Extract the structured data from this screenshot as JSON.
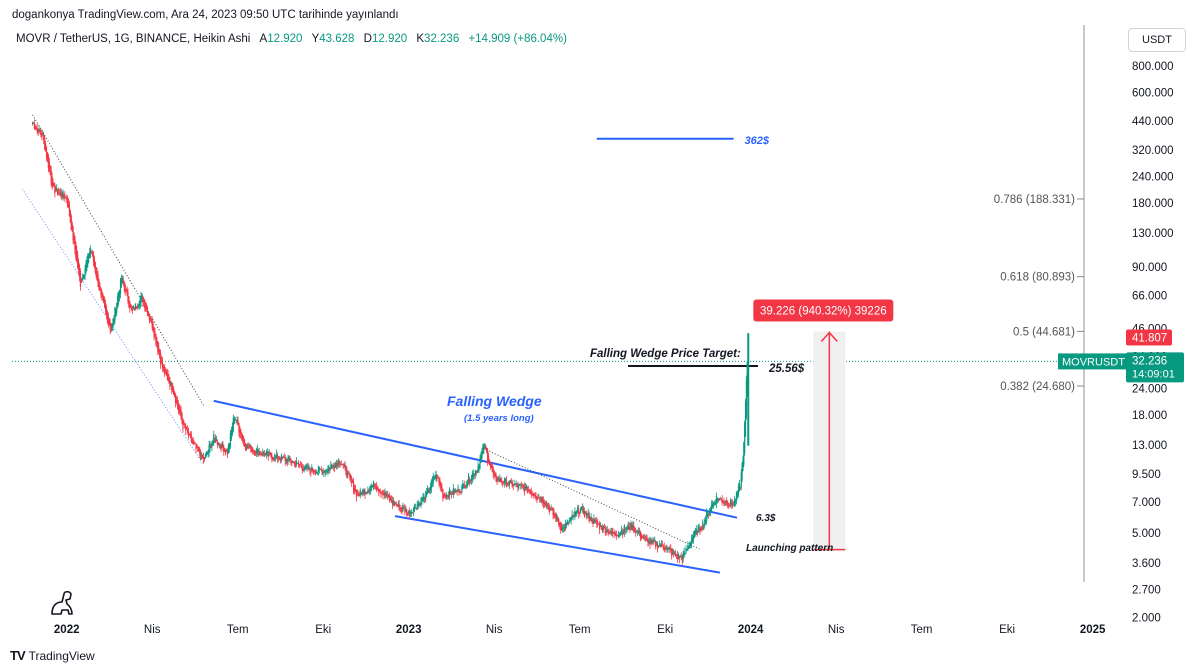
{
  "header": {
    "publish_line": "dogankonya TradingView.com, Ara 24, 2023 09:50 UTC tarihinde yayınlandı",
    "symbol": "MOVR / TetherUS, 1G, BINANCE, Heikin Ashi",
    "ohlc": [
      {
        "label": "A",
        "value": "12.920"
      },
      {
        "label": "Y",
        "value": "43.628"
      },
      {
        "label": "D",
        "value": "12.920"
      },
      {
        "label": "K",
        "value": "32.236"
      }
    ],
    "change": "+14.909 (+86.04%)"
  },
  "currency_button": "USDT",
  "brand": {
    "logo": "TV",
    "name": "TradingView"
  },
  "colors": {
    "up": "#089981",
    "down": "#f23645",
    "drawing": "#2962ff",
    "label_bg": "#f23645"
  },
  "chart_data": {
    "type": "candlestick",
    "scale": "log",
    "title": "MOVR / TetherUS, 1G, BINANCE, Heikin Ashi",
    "x_ticks": [
      "2022",
      "Nis",
      "Tem",
      "Eki",
      "2023",
      "Nis",
      "Tem",
      "Eki",
      "2024",
      "Nis",
      "Tem",
      "Eki",
      "2025"
    ],
    "x_tick_dates": [
      2022.0,
      2022.25,
      2022.5,
      2022.75,
      2023.0,
      2023.25,
      2023.5,
      2023.75,
      2024.0,
      2024.25,
      2024.5,
      2024.75,
      2025.0
    ],
    "x_range": [
      2021.84,
      2025.08
    ],
    "y_ticks": [
      "800.000",
      "600.000",
      "440.000",
      "320.000",
      "240.000",
      "180.000",
      "130.000",
      "90.000",
      "66.000",
      "46.000",
      "34.000",
      "24.000",
      "18.000",
      "13.000",
      "9.500",
      "7.000",
      "5.000",
      "3.600",
      "2.700",
      "2.000"
    ],
    "y_tick_values": [
      800,
      600,
      440,
      320,
      240,
      180,
      130,
      90,
      66,
      46,
      34,
      24,
      18,
      13,
      9.5,
      7,
      5,
      3.6,
      2.7,
      2
    ],
    "y_range": [
      1.9,
      950
    ],
    "price_path": [
      [
        2021.9,
        430
      ],
      [
        2021.93,
        370
      ],
      [
        2021.96,
        210
      ],
      [
        2022.0,
        190
      ],
      [
        2022.04,
        75
      ],
      [
        2022.07,
        110
      ],
      [
        2022.1,
        65
      ],
      [
        2022.13,
        45
      ],
      [
        2022.16,
        80
      ],
      [
        2022.19,
        55
      ],
      [
        2022.22,
        65
      ],
      [
        2022.25,
        48
      ],
      [
        2022.28,
        30
      ],
      [
        2022.31,
        24
      ],
      [
        2022.34,
        16
      ],
      [
        2022.37,
        13
      ],
      [
        2022.4,
        11
      ],
      [
        2022.43,
        14
      ],
      [
        2022.47,
        12
      ],
      [
        2022.49,
        18
      ],
      [
        2022.52,
        13
      ],
      [
        2022.56,
        12
      ],
      [
        2022.6,
        11.5
      ],
      [
        2022.65,
        11
      ],
      [
        2022.7,
        10
      ],
      [
        2022.75,
        9.8
      ],
      [
        2022.8,
        11
      ],
      [
        2022.85,
        7.5
      ],
      [
        2022.9,
        8.5
      ],
      [
        2022.95,
        7
      ],
      [
        2023.0,
        6.2
      ],
      [
        2023.05,
        7.5
      ],
      [
        2023.08,
        9.5
      ],
      [
        2023.1,
        7.5
      ],
      [
        2023.15,
        8
      ],
      [
        2023.2,
        10
      ],
      [
        2023.22,
        13
      ],
      [
        2023.25,
        9
      ],
      [
        2023.3,
        8.5
      ],
      [
        2023.35,
        8
      ],
      [
        2023.4,
        7
      ],
      [
        2023.45,
        5.2
      ],
      [
        2023.5,
        6.5
      ],
      [
        2023.55,
        5.5
      ],
      [
        2023.6,
        4.9
      ],
      [
        2023.65,
        5.4
      ],
      [
        2023.7,
        4.5
      ],
      [
        2023.75,
        4.3
      ],
      [
        2023.78,
        3.9
      ],
      [
        2023.8,
        3.8
      ],
      [
        2023.83,
        4.8
      ],
      [
        2023.86,
        5.5
      ],
      [
        2023.88,
        6.5
      ],
      [
        2023.9,
        7.3
      ],
      [
        2023.93,
        7
      ],
      [
        2023.95,
        6.8
      ],
      [
        2023.97,
        8.5
      ],
      [
        2023.98,
        13
      ],
      [
        2023.99,
        32
      ]
    ],
    "last_price": {
      "symbol": "MOVRUSDT",
      "price": "32.236",
      "countdown": "14:09:01",
      "value": 32.236
    },
    "high_marker": {
      "label": "41.807",
      "value": 41.807
    },
    "fib_levels": [
      {
        "label": "0.786 (188.331)",
        "value": 188.331
      },
      {
        "label": "0.618 (80.893)",
        "value": 80.893
      },
      {
        "label": "0.5 (44.681)",
        "value": 44.681
      },
      {
        "label": "0.382 (24.680)",
        "value": 24.68
      }
    ],
    "measure": {
      "label": "39.226 (940.32%) 39226",
      "from": 4.17,
      "to": 44.6,
      "date": 2024.23
    },
    "target_line": {
      "label": "362$",
      "value": 362,
      "from": 2023.55,
      "to": 2023.95
    },
    "wedge": {
      "upper": [
        [
          2022.43,
          21
        ],
        [
          2023.96,
          5.9
        ]
      ],
      "lower": [
        [
          2022.96,
          6.0
        ],
        [
          2023.91,
          3.25
        ]
      ],
      "inner_upper": [
        [
          2021.9,
          470
        ],
        [
          2022.4,
          20
        ]
      ],
      "inner_lower": [
        [
          2021.87,
          210
        ],
        [
          2022.4,
          10.5
        ]
      ],
      "dotted_lower": [
        [
          2023.22,
          12.5
        ],
        [
          2023.85,
          4.2
        ]
      ]
    },
    "annotations": [
      {
        "text": "Falling Wedge",
        "style": "title"
      },
      {
        "text": "(1.5 years long)",
        "style": "sub"
      },
      {
        "text": "Falling Wedge Price Target:",
        "style": "note"
      },
      {
        "text": "25.56$",
        "style": "note"
      },
      {
        "text": "6.3$",
        "style": "note"
      },
      {
        "text": "Launching pattern",
        "style": "note"
      }
    ]
  }
}
